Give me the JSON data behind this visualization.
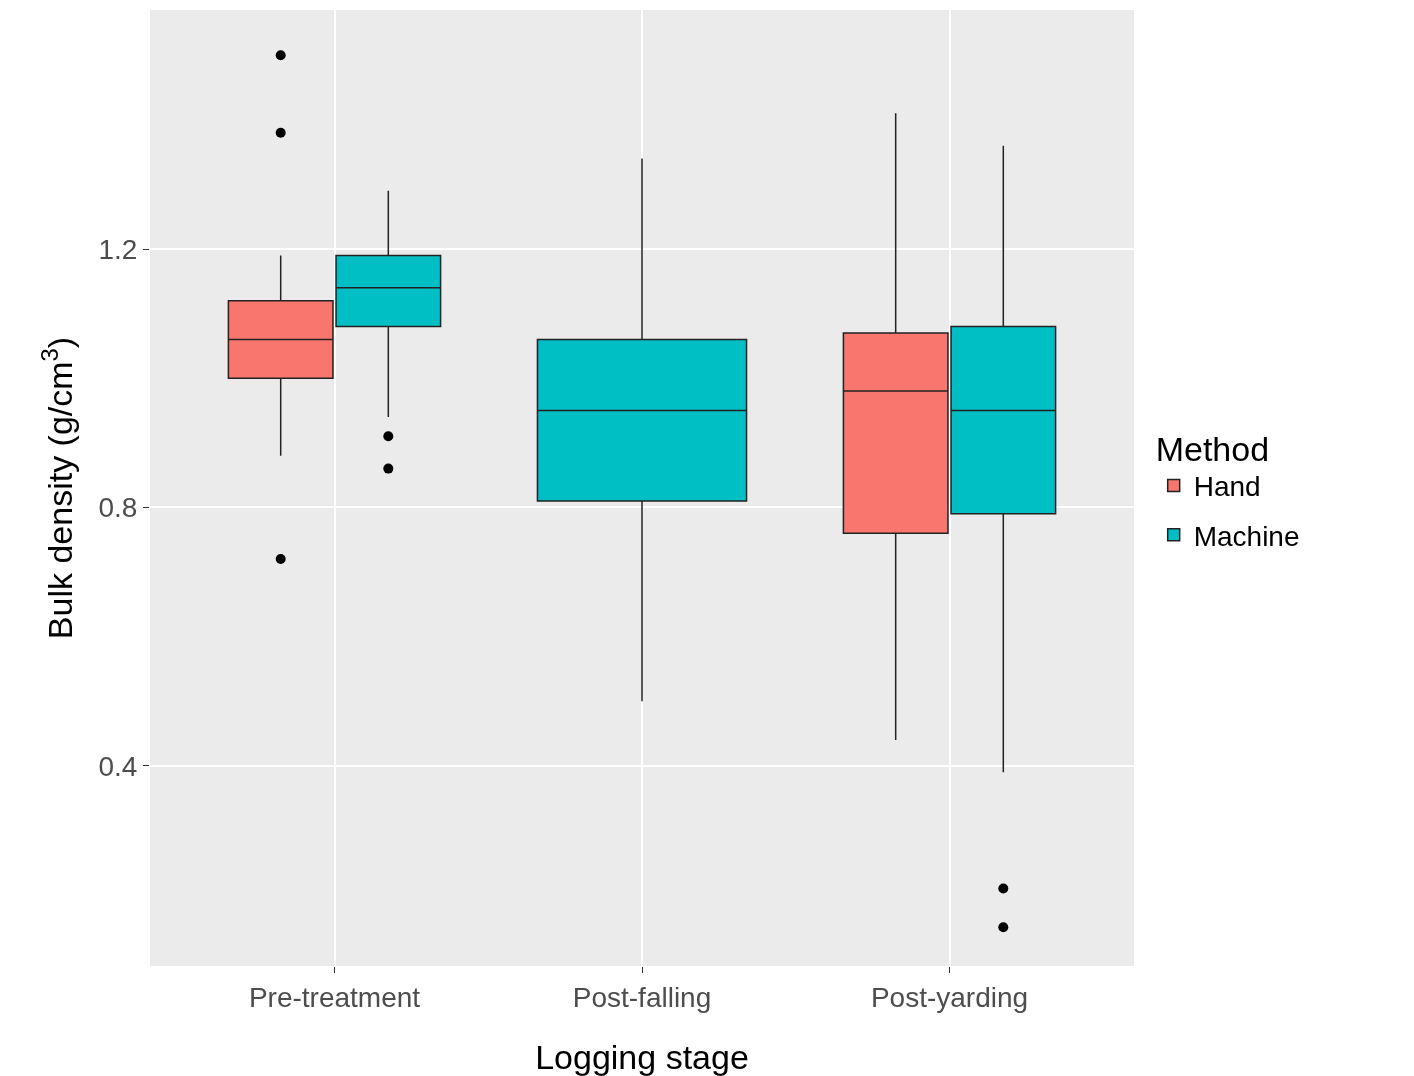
{
  "chart_data": {
    "type": "box",
    "xlabel": "Logging stage",
    "ylabel": "Bulk density (g/cm$^{3}$)",
    "legend_title": "Method",
    "legend": "right",
    "grid": true,
    "categories": [
      "Pre-treatment",
      "Post-falling",
      "Post-yarding"
    ],
    "ylim": [
      0.09,
      1.57
    ],
    "yticks": [
      0.4,
      0.8,
      1.2
    ],
    "series": [
      {
        "name": "Hand",
        "color": "#f8766d",
        "boxes": [
          {
            "low": 0.88,
            "q1": 1.0,
            "median": 1.06,
            "q3": 1.12,
            "high": 1.19,
            "outliers": [
              1.5,
              1.38,
              0.72
            ]
          },
          null,
          {
            "low": 0.44,
            "q1": 0.76,
            "median": 0.98,
            "q3": 1.07,
            "high": 1.41
          }
        ]
      },
      {
        "name": "Machine",
        "color": "#00bfc4",
        "boxes": [
          {
            "low": 0.94,
            "q1": 1.08,
            "median": 1.14,
            "q3": 1.19,
            "high": 1.29,
            "outliers": [
              0.91,
              0.86
            ]
          },
          {
            "low": 0.5,
            "q1": 0.81,
            "median": 0.95,
            "q3": 1.06,
            "high": 1.34
          },
          {
            "low": 0.39,
            "q1": 0.79,
            "median": 0.95,
            "q3": 1.08,
            "high": 1.36,
            "outliers": [
              0.21,
              0.15
            ]
          }
        ]
      }
    ]
  }
}
